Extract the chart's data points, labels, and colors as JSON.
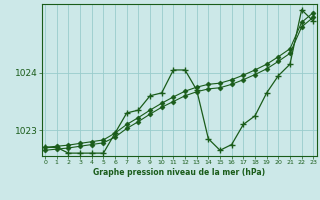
{
  "title": "Graphe pression niveau de la mer (hPa)",
  "background_color": "#cce8e8",
  "grid_color": "#99cccc",
  "line_color": "#1a5c1a",
  "x_min": 0,
  "x_max": 23,
  "y_min": 1022.55,
  "y_max": 1025.2,
  "y_ticks": [
    1023,
    1024
  ],
  "x_ticks": [
    0,
    1,
    2,
    3,
    4,
    5,
    6,
    7,
    8,
    9,
    10,
    11,
    12,
    13,
    14,
    15,
    16,
    17,
    18,
    19,
    20,
    21,
    22,
    23
  ],
  "hours": [
    0,
    1,
    2,
    3,
    4,
    5,
    6,
    7,
    8,
    9,
    10,
    11,
    12,
    13,
    14,
    15,
    16,
    17,
    18,
    19,
    20,
    21,
    22,
    23
  ],
  "pressure_main": [
    1022.7,
    1022.7,
    1022.6,
    1022.6,
    1022.6,
    1022.6,
    1022.95,
    1023.3,
    1023.35,
    1023.6,
    1023.65,
    1024.05,
    1024.05,
    1023.7,
    1022.85,
    1022.65,
    1022.75,
    1023.1,
    1023.25,
    1023.65,
    1023.95,
    1024.15,
    1025.1,
    1024.9
  ],
  "pressure_upper": [
    1022.7,
    1022.72,
    1022.74,
    1022.77,
    1022.8,
    1022.83,
    1022.95,
    1023.1,
    1023.22,
    1023.35,
    1023.47,
    1023.58,
    1023.68,
    1023.75,
    1023.8,
    1023.82,
    1023.88,
    1023.96,
    1024.05,
    1024.15,
    1024.28,
    1024.42,
    1024.88,
    1025.05
  ],
  "pressure_lower": [
    1022.65,
    1022.67,
    1022.69,
    1022.72,
    1022.75,
    1022.78,
    1022.88,
    1023.03,
    1023.15,
    1023.28,
    1023.4,
    1023.5,
    1023.6,
    1023.67,
    1023.72,
    1023.74,
    1023.8,
    1023.88,
    1023.97,
    1024.07,
    1024.2,
    1024.34,
    1024.8,
    1024.97
  ]
}
